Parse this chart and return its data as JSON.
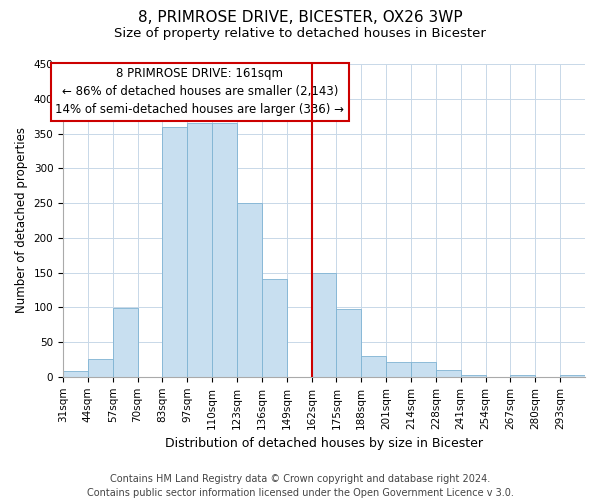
{
  "title": "8, PRIMROSE DRIVE, BICESTER, OX26 3WP",
  "subtitle": "Size of property relative to detached houses in Bicester",
  "xlabel": "Distribution of detached houses by size in Bicester",
  "ylabel": "Number of detached properties",
  "footer_lines": [
    "Contains HM Land Registry data © Crown copyright and database right 2024.",
    "Contains public sector information licensed under the Open Government Licence v 3.0."
  ],
  "bin_labels": [
    "31sqm",
    "44sqm",
    "57sqm",
    "70sqm",
    "83sqm",
    "97sqm",
    "110sqm",
    "123sqm",
    "136sqm",
    "149sqm",
    "162sqm",
    "175sqm",
    "188sqm",
    "201sqm",
    "214sqm",
    "228sqm",
    "241sqm",
    "254sqm",
    "267sqm",
    "280sqm",
    "293sqm"
  ],
  "bar_values": [
    8,
    25,
    99,
    0,
    360,
    365,
    365,
    250,
    140,
    0,
    150,
    97,
    30,
    22,
    22,
    10,
    2,
    0,
    2,
    0,
    2
  ],
  "bar_color": "#c8dff0",
  "bar_edge_color": "#7fb3d3",
  "vertical_line_x_label": "162sqm",
  "vertical_line_label": "8 PRIMROSE DRIVE: 161sqm",
  "annotation_line1": "← 86% of detached houses are smaller (2,143)",
  "annotation_line2": "14% of semi-detached houses are larger (336) →",
  "annotation_box_color": "#ffffff",
  "annotation_box_edge": "#cc0000",
  "vline_color": "#cc0000",
  "ylim": [
    0,
    450
  ],
  "title_fontsize": 11,
  "subtitle_fontsize": 9.5,
  "xlabel_fontsize": 9,
  "ylabel_fontsize": 8.5,
  "tick_fontsize": 7.5,
  "annotation_fontsize": 8.5,
  "footer_fontsize": 7
}
